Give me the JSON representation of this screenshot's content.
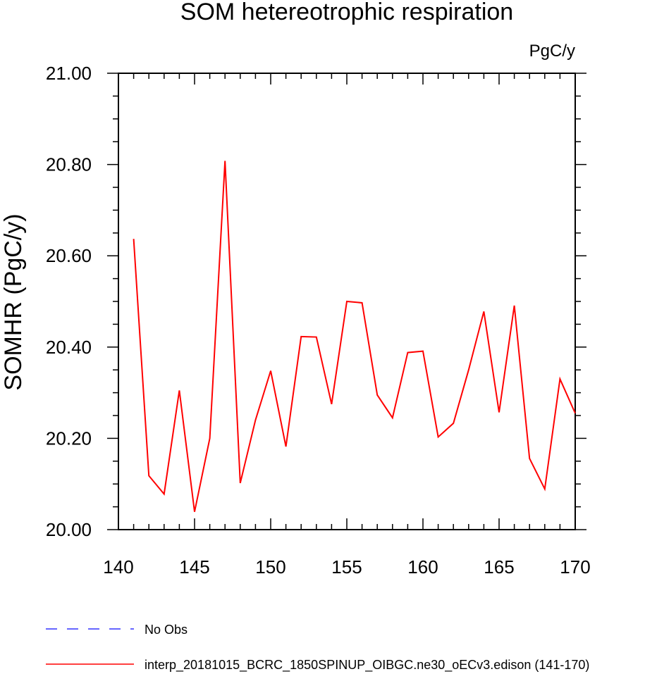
{
  "chart_data": {
    "type": "line",
    "title": "SOM hetereotrophic respiration",
    "units_label": "PgC/y",
    "xlabel": "",
    "ylabel": "SOMHR  (PgC/y)",
    "xlim": [
      140,
      170
    ],
    "ylim": [
      20.0,
      21.0
    ],
    "x_ticks": [
      140,
      145,
      150,
      155,
      160,
      165,
      170
    ],
    "y_ticks": [
      "20.00",
      "20.20",
      "20.40",
      "20.60",
      "20.80",
      "21.00"
    ],
    "grid": false,
    "legend_position": "bottom",
    "series": [
      {
        "name": "No Obs",
        "color": "#3333ff",
        "dash": "dashed",
        "x": [],
        "values": []
      },
      {
        "name": "interp_20181015_BCRC_1850SPINUP_OIBGC.ne30_oECv3.edison (141-170)",
        "color": "#ff0000",
        "dash": "solid",
        "x": [
          141,
          142,
          143,
          144,
          145,
          146,
          147,
          148,
          149,
          150,
          151,
          152,
          153,
          154,
          155,
          156,
          157,
          158,
          159,
          160,
          161,
          162,
          163,
          164,
          165,
          166,
          167,
          168,
          169,
          170
        ],
        "values": [
          20.637,
          20.118,
          20.078,
          20.305,
          20.039,
          20.2,
          20.808,
          20.102,
          20.24,
          20.348,
          20.182,
          20.423,
          20.422,
          20.275,
          20.5,
          20.497,
          20.295,
          20.245,
          20.388,
          20.391,
          20.203,
          20.233,
          20.35,
          20.478,
          20.257,
          20.491,
          20.156,
          20.089,
          20.33,
          20.255
        ]
      }
    ]
  }
}
